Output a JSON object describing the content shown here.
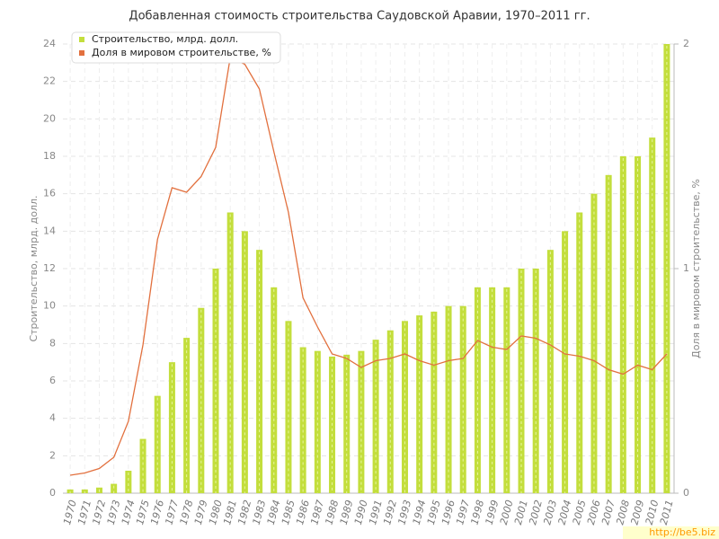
{
  "chart_data": {
    "type": "bar",
    "title": "Добавленная стоимость строительства Саудовской Аравии, 1970–2011 гг.",
    "y_label": "Строительство, млрд. долл.",
    "y2_label": "Доля в мировом строительстве, %",
    "watermark": "http://be5.biz",
    "categories": [
      "1970",
      "1971",
      "1972",
      "1973",
      "1974",
      "1975",
      "1976",
      "1977",
      "1978",
      "1979",
      "1980",
      "1981",
      "1982",
      "1983",
      "1984",
      "1985",
      "1986",
      "1987",
      "1988",
      "1989",
      "1990",
      "1991",
      "1992",
      "1993",
      "1994",
      "1995",
      "1996",
      "1997",
      "1998",
      "1999",
      "2000",
      "2001",
      "2002",
      "2003",
      "2004",
      "2005",
      "2006",
      "2007",
      "2008",
      "2009",
      "2010",
      "2011"
    ],
    "series": [
      {
        "name": "Строительство, млрд. долл.",
        "type": "bar",
        "color": "#c3de3c",
        "values": [
          0.2,
          0.2,
          0.3,
          0.5,
          1.2,
          2.9,
          5.2,
          7.0,
          8.3,
          9.9,
          12,
          15,
          14,
          13,
          11,
          9.2,
          7.8,
          7.6,
          7.3,
          7.4,
          7.6,
          8.2,
          8.7,
          9.2,
          9.5,
          9.7,
          10,
          10,
          11,
          11,
          11,
          12,
          12,
          13,
          14,
          15,
          16,
          17,
          18,
          18,
          19,
          24
        ]
      },
      {
        "name": "Доля в мировом строительстве, %",
        "type": "line",
        "axis": "y2",
        "color": "#e2703e",
        "values": [
          0.08,
          0.09,
          0.11,
          0.16,
          0.32,
          0.66,
          1.13,
          1.36,
          1.34,
          1.41,
          1.54,
          1.94,
          1.91,
          1.8,
          1.52,
          1.25,
          0.87,
          0.74,
          0.62,
          0.6,
          0.56,
          0.59,
          0.6,
          0.62,
          0.59,
          0.57,
          0.59,
          0.6,
          0.68,
          0.65,
          0.64,
          0.7,
          0.69,
          0.66,
          0.62,
          0.61,
          0.59,
          0.55,
          0.53,
          0.57,
          0.55,
          0.62
        ]
      }
    ],
    "ylim": [
      0,
      24
    ],
    "yticks": [
      0,
      2,
      4,
      6,
      8,
      10,
      12,
      14,
      16,
      18,
      20,
      22,
      24
    ],
    "y2lim": [
      0,
      2
    ],
    "y2ticks": [
      0,
      1,
      2
    ],
    "grid": true,
    "legend": "top-left"
  }
}
